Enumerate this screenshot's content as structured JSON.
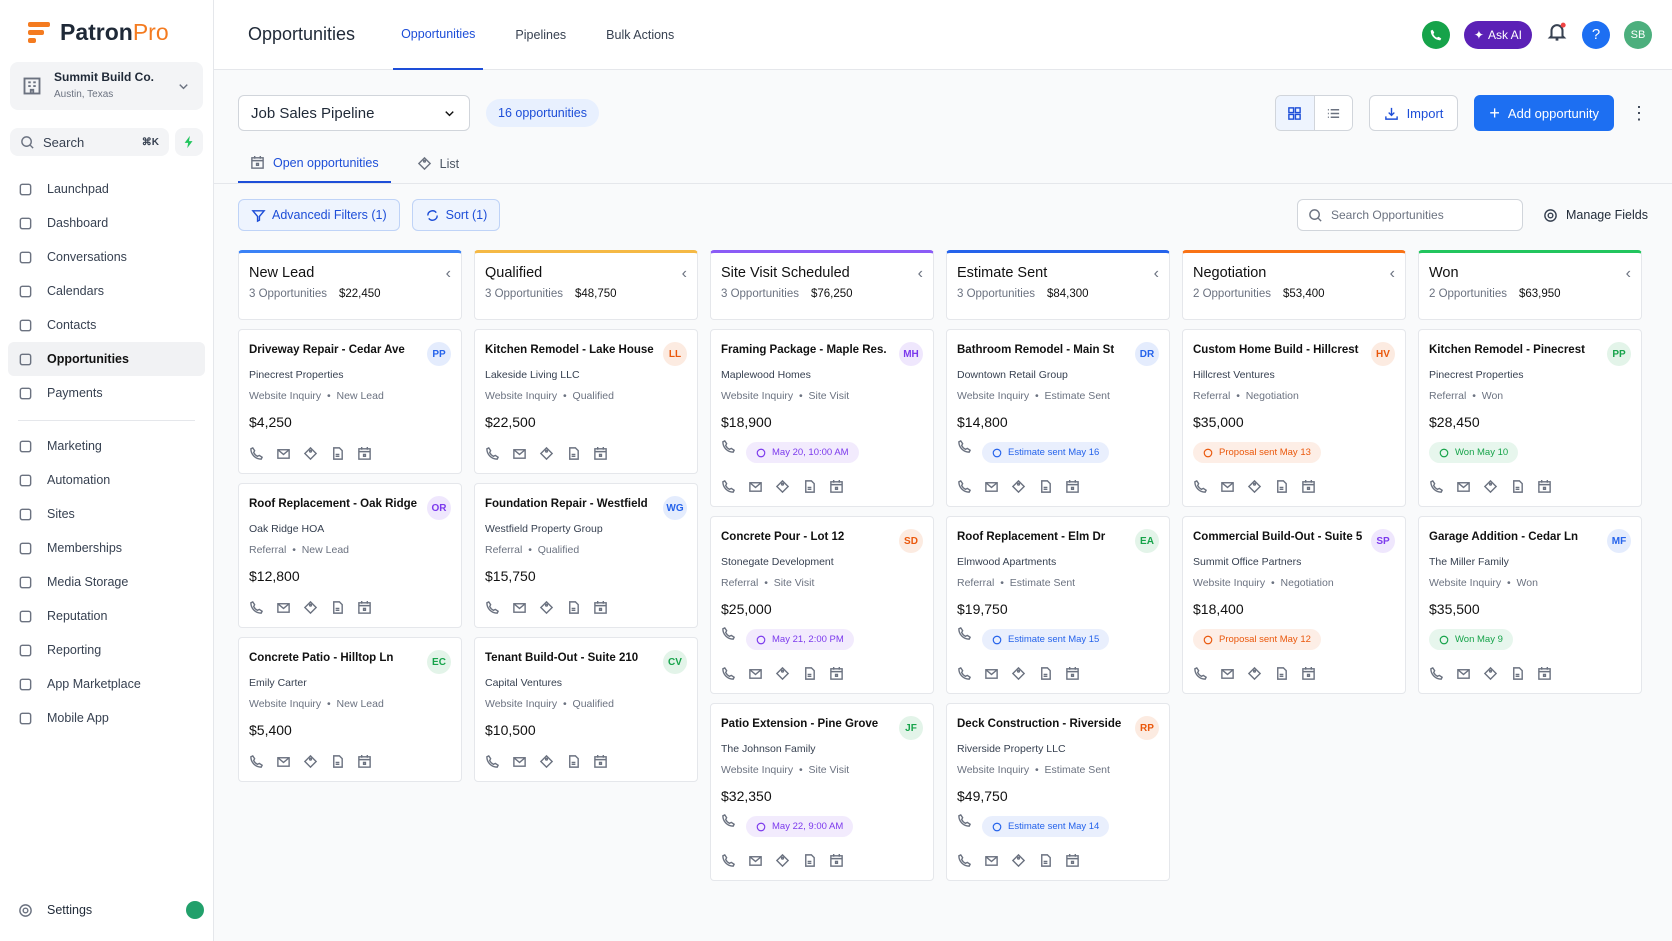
{
  "brand": {
    "name_a": "Patron",
    "name_b": "Pro"
  },
  "account": {
    "name": "Summit Build Co.",
    "location": "Austin, Texas"
  },
  "search": {
    "placeholder": "Search",
    "shortcut": "⌘K"
  },
  "nav": [
    "Launchpad",
    "Dashboard",
    "Conversations",
    "Calendars",
    "Contacts",
    "Opportunities",
    "Payments"
  ],
  "nav_active": 5,
  "nav2": [
    "Marketing",
    "Automation",
    "Sites",
    "Memberships",
    "Media Storage",
    "Reputation",
    "Reporting",
    "App Marketplace",
    "Mobile App"
  ],
  "settings": "Settings",
  "header": {
    "title": "Opportunities",
    "tabs": [
      "Opportunities",
      "Pipelines",
      "Bulk Actions"
    ],
    "ask_ai": "Ask AI",
    "avatar": "SB"
  },
  "toolbar": {
    "pipeline": "Job Sales Pipeline",
    "count": "16 opportunities",
    "import": "Import",
    "add": "Add opportunity"
  },
  "views": [
    "Open opportunities",
    "List"
  ],
  "filters": {
    "advanced": "Advancedi Filters (1)",
    "sort": "Sort (1)",
    "search": "Search Opportunities",
    "manage": "Manage Fields"
  },
  "columns": [
    {
      "title": "New Lead",
      "count": "3 Opportunities",
      "total": "$22,450",
      "color": "#3b82f6",
      "cards": [
        {
          "title": "Driveway Repair - Cedar Ave",
          "initials": "PP",
          "avatar_color": "#2563eb",
          "company": "Pinecrest Properties",
          "source": "Website Inquiry",
          "stage": "New Lead",
          "amount": "$4,250"
        },
        {
          "title": "Roof Replacement - Oak Ridge",
          "initials": "OR",
          "avatar_color": "#7c3aed",
          "company": "Oak Ridge HOA",
          "source": "Referral",
          "stage": "New Lead",
          "amount": "$12,800"
        },
        {
          "title": "Concrete Patio - Hilltop Ln",
          "initials": "EC",
          "avatar_color": "#16a34a",
          "company": "Emily Carter",
          "source": "Website Inquiry",
          "stage": "New Lead",
          "amount": "$5,400"
        }
      ]
    },
    {
      "title": "Qualified",
      "count": "3 Opportunities",
      "total": "$48,750",
      "color": "#f5b945",
      "cards": [
        {
          "title": "Kitchen Remodel - Lake House",
          "initials": "LL",
          "avatar_color": "#ea580c",
          "company": "Lakeside Living LLC",
          "source": "Website Inquiry",
          "stage": "Qualified",
          "amount": "$22,500"
        },
        {
          "title": "Foundation Repair - Westfield",
          "initials": "WG",
          "avatar_color": "#2563eb",
          "company": "Westfield Property Group",
          "source": "Referral",
          "stage": "Qualified",
          "amount": "$15,750"
        },
        {
          "title": "Tenant Build-Out - Suite 210",
          "initials": "CV",
          "avatar_color": "#16a34a",
          "company": "Capital Ventures",
          "source": "Website Inquiry",
          "stage": "Qualified",
          "amount": "$10,500"
        }
      ]
    },
    {
      "title": "Site Visit Scheduled",
      "count": "3 Opportunities",
      "total": "$76,250",
      "color": "#8b5cf6",
      "cards": [
        {
          "title": "Framing Package - Maple Res.",
          "initials": "MH",
          "avatar_color": "#7c3aed",
          "company": "Maplewood Homes",
          "source": "Website Inquiry",
          "stage": "Site Visit",
          "amount": "$18,900",
          "badge": {
            "text": "May 20, 10:00 AM",
            "color": "#7c3aed"
          }
        },
        {
          "title": "Concrete Pour - Lot 12",
          "initials": "SD",
          "avatar_color": "#ea580c",
          "company": "Stonegate Development",
          "source": "Referral",
          "stage": "Site Visit",
          "amount": "$25,000",
          "badge": {
            "text": "May 21, 2:00 PM",
            "color": "#7c3aed"
          }
        },
        {
          "title": "Patio Extension - Pine Grove",
          "initials": "JF",
          "avatar_color": "#16a34a",
          "company": "The Johnson Family",
          "source": "Website Inquiry",
          "stage": "Site Visit",
          "amount": "$32,350",
          "badge": {
            "text": "May 22, 9:00 AM",
            "color": "#7c3aed"
          }
        }
      ]
    },
    {
      "title": "Estimate Sent",
      "count": "3 Opportunities",
      "total": "$84,300",
      "color": "#2563eb",
      "cards": [
        {
          "title": "Bathroom Remodel - Main St",
          "initials": "DR",
          "avatar_color": "#2563eb",
          "company": "Downtown Retail Group",
          "source": "Website Inquiry",
          "stage": "Estimate Sent",
          "amount": "$14,800",
          "badge": {
            "text": "Estimate sent May 16",
            "color": "#2563eb"
          }
        },
        {
          "title": "Roof Replacement - Elm Dr",
          "initials": "EA",
          "avatar_color": "#16a34a",
          "company": "Elmwood Apartments",
          "source": "Referral",
          "stage": "Estimate Sent",
          "amount": "$19,750",
          "badge": {
            "text": "Estimate sent May 15",
            "color": "#2563eb"
          }
        },
        {
          "title": "Deck Construction - Riverside",
          "initials": "RP",
          "avatar_color": "#ea580c",
          "company": "Riverside Property LLC",
          "source": "Website Inquiry",
          "stage": "Estimate Sent",
          "amount": "$49,750",
          "badge": {
            "text": "Estimate sent May 14",
            "color": "#2563eb"
          }
        }
      ]
    },
    {
      "title": "Negotiation",
      "count": "2 Opportunities",
      "total": "$53,400",
      "color": "#f97316",
      "cards": [
        {
          "title": "Custom Home Build - Hillcrest",
          "initials": "HV",
          "avatar_color": "#ea580c",
          "company": "Hillcrest Ventures",
          "source": "Referral",
          "stage": "Negotiation",
          "amount": "$35,000",
          "badge": {
            "text": "Proposal sent May 13",
            "color": "#ea580c"
          }
        },
        {
          "title": "Commercial Build-Out - Suite 5",
          "initials": "SP",
          "avatar_color": "#7c3aed",
          "company": "Summit Office Partners",
          "source": "Website Inquiry",
          "stage": "Negotiation",
          "amount": "$18,400",
          "badge": {
            "text": "Proposal sent May 12",
            "color": "#ea580c"
          }
        }
      ]
    },
    {
      "title": "Won",
      "count": "2 Opportunities",
      "total": "$63,950",
      "color": "#22c55e",
      "cards": [
        {
          "title": "Kitchen Remodel - Pinecrest",
          "initials": "PP",
          "avatar_color": "#16a34a",
          "company": "Pinecrest Properties",
          "source": "Referral",
          "stage": "Won",
          "amount": "$28,450",
          "badge": {
            "text": "Won May 10",
            "color": "#16a34a"
          }
        },
        {
          "title": "Garage Addition - Cedar Ln",
          "initials": "MF",
          "avatar_color": "#2563eb",
          "company": "The Miller Family",
          "source": "Website Inquiry",
          "stage": "Won",
          "amount": "$35,500",
          "badge": {
            "text": "Won May 9",
            "color": "#16a34a"
          }
        }
      ]
    }
  ]
}
